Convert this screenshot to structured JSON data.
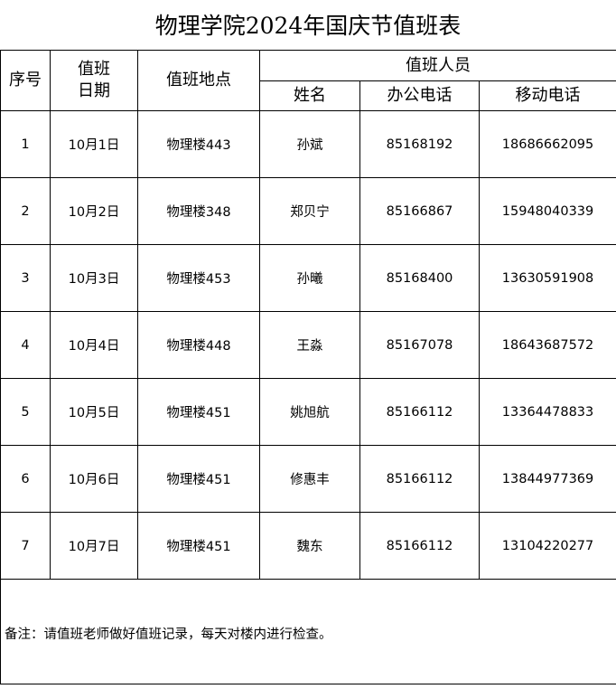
{
  "title": "物理学院2024年国庆节值班表",
  "headers": {
    "index": "序号",
    "date": "值班\n日期",
    "date_line1": "值班",
    "date_line2": "日期",
    "location": "值班地点",
    "staff": "值班人员",
    "name": "姓名",
    "office_phone": "办公电话",
    "mobile_phone": "移动电话"
  },
  "rows": [
    {
      "index": "1",
      "date": "10月1日",
      "location": "物理楼443",
      "name": "孙斌",
      "office": "85168192",
      "mobile": "18686662095"
    },
    {
      "index": "2",
      "date": "10月2日",
      "location": "物理楼348",
      "name": "郑贝宁",
      "office": "85166867",
      "mobile": "15948040339"
    },
    {
      "index": "3",
      "date": "10月3日",
      "location": "物理楼453",
      "name": "孙曦",
      "office": "85168400",
      "mobile": "13630591908"
    },
    {
      "index": "4",
      "date": "10月4日",
      "location": "物理楼448",
      "name": "王淼",
      "office": "85167078",
      "mobile": "18643687572"
    },
    {
      "index": "5",
      "date": "10月5日",
      "location": "物理楼451",
      "name": "姚旭航",
      "office": "85166112",
      "mobile": "13364478833"
    },
    {
      "index": "6",
      "date": "10月6日",
      "location": "物理楼451",
      "name": "修惠丰",
      "office": "85166112",
      "mobile": "13844977369"
    },
    {
      "index": "7",
      "date": "10月7日",
      "location": "物理楼451",
      "name": "魏东",
      "office": "85166112",
      "mobile": "13104220277"
    }
  ],
  "note": "备注：请值班老师做好值班记录，每天对楼内进行检查。"
}
